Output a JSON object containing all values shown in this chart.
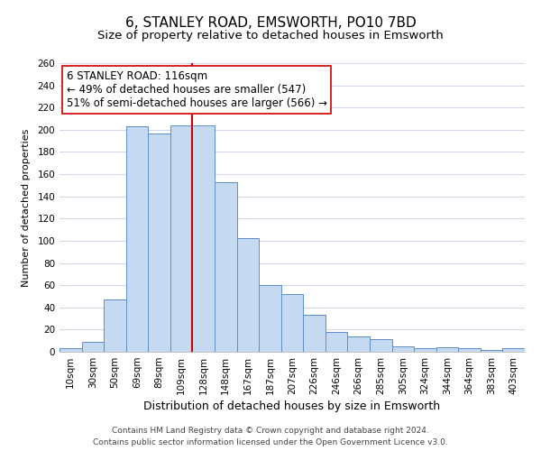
{
  "title": "6, STANLEY ROAD, EMSWORTH, PO10 7BD",
  "subtitle": "Size of property relative to detached houses in Emsworth",
  "xlabel": "Distribution of detached houses by size in Emsworth",
  "ylabel": "Number of detached properties",
  "categories": [
    "10sqm",
    "30sqm",
    "50sqm",
    "69sqm",
    "89sqm",
    "109sqm",
    "128sqm",
    "148sqm",
    "167sqm",
    "187sqm",
    "207sqm",
    "226sqm",
    "246sqm",
    "266sqm",
    "285sqm",
    "305sqm",
    "324sqm",
    "344sqm",
    "364sqm",
    "383sqm",
    "403sqm"
  ],
  "values": [
    3,
    9,
    47,
    203,
    197,
    204,
    204,
    153,
    102,
    60,
    52,
    33,
    18,
    14,
    11,
    5,
    3,
    4,
    3,
    2,
    3
  ],
  "bar_color": "#c5d9f0",
  "bar_edge_color": "#5b8fc7",
  "vline_x": 5.5,
  "vline_color": "#cc0000",
  "annotation_title": "6 STANLEY ROAD: 116sqm",
  "annotation_line1": "← 49% of detached houses are smaller (547)",
  "annotation_line2": "51% of semi-detached houses are larger (566) →",
  "box_edge_color": "#cc0000",
  "ylim": [
    0,
    260
  ],
  "yticks": [
    0,
    20,
    40,
    60,
    80,
    100,
    120,
    140,
    160,
    180,
    200,
    220,
    240,
    260
  ],
  "footer1": "Contains HM Land Registry data © Crown copyright and database right 2024.",
  "footer2": "Contains public sector information licensed under the Open Government Licence v3.0.",
  "title_fontsize": 11,
  "subtitle_fontsize": 9.5,
  "xlabel_fontsize": 9,
  "ylabel_fontsize": 8,
  "tick_fontsize": 7.5,
  "annotation_fontsize": 8.5,
  "footer_fontsize": 6.5,
  "background_color": "#ffffff",
  "grid_color": "#d0d8e8"
}
